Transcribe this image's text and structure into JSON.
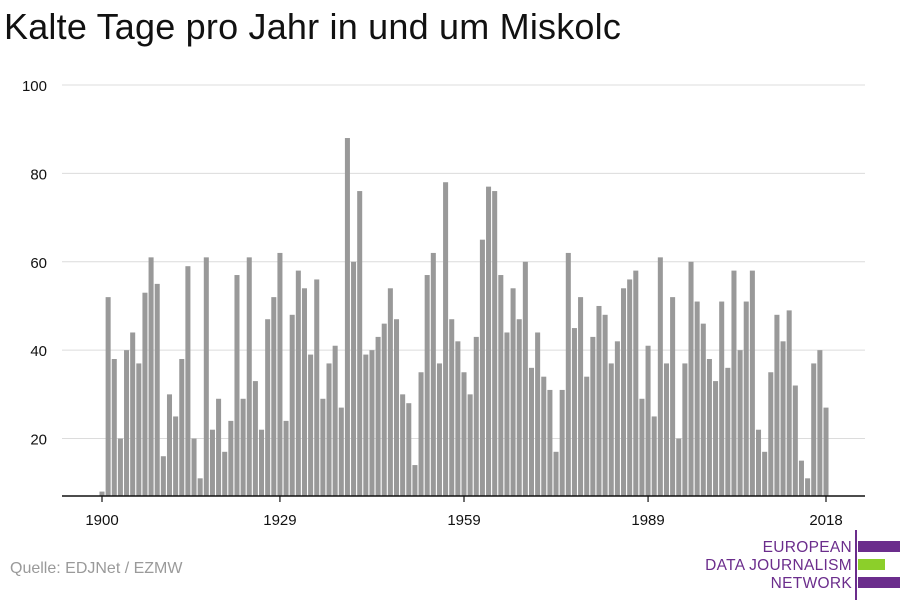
{
  "title": "Kalte Tage pro Jahr in und um Miskolc",
  "source": "Quelle: EDJNet / EZMW",
  "logo": {
    "line1": "EUROPEAN",
    "line2": "DATA JOURNALISM",
    "line3": "NETWORK"
  },
  "colors": {
    "bar": "#999999",
    "grid": "#dcdcdc",
    "axis": "#111111",
    "logo_purple": "#6b2d8c",
    "logo_green": "#8ccf2a"
  },
  "chart_data": {
    "type": "bar",
    "title": "Kalte Tage pro Jahr in und um Miskolc",
    "xlabel": "",
    "ylabel": "",
    "ylim": [
      7,
      100
    ],
    "yticks": [
      20,
      40,
      60,
      80,
      100
    ],
    "xticks": [
      1900,
      1929,
      1959,
      1989,
      2018
    ],
    "grid": true,
    "x": [
      1900,
      1901,
      1902,
      1903,
      1904,
      1905,
      1906,
      1907,
      1908,
      1909,
      1910,
      1911,
      1912,
      1913,
      1914,
      1915,
      1916,
      1917,
      1918,
      1919,
      1920,
      1921,
      1922,
      1923,
      1924,
      1925,
      1926,
      1927,
      1928,
      1929,
      1930,
      1931,
      1932,
      1933,
      1934,
      1935,
      1936,
      1937,
      1938,
      1939,
      1940,
      1941,
      1942,
      1943,
      1944,
      1945,
      1946,
      1947,
      1948,
      1949,
      1950,
      1951,
      1952,
      1953,
      1954,
      1955,
      1956,
      1957,
      1958,
      1959,
      1960,
      1961,
      1962,
      1963,
      1964,
      1965,
      1966,
      1967,
      1968,
      1969,
      1970,
      1971,
      1972,
      1973,
      1974,
      1975,
      1976,
      1977,
      1978,
      1979,
      1980,
      1981,
      1982,
      1983,
      1984,
      1985,
      1986,
      1987,
      1988,
      1989,
      1990,
      1991,
      1992,
      1993,
      1994,
      1995,
      1996,
      1997,
      1998,
      1999,
      2000,
      2001,
      2002,
      2003,
      2004,
      2005,
      2006,
      2007,
      2008,
      2009,
      2010,
      2011,
      2012,
      2013,
      2014,
      2015,
      2016,
      2017,
      2018
    ],
    "values": [
      8,
      52,
      38,
      20,
      40,
      44,
      37,
      53,
      61,
      55,
      16,
      30,
      25,
      38,
      59,
      20,
      11,
      61,
      22,
      29,
      17,
      24,
      57,
      29,
      61,
      33,
      22,
      47,
      52,
      62,
      24,
      48,
      58,
      54,
      39,
      56,
      29,
      37,
      41,
      27,
      88,
      60,
      76,
      39,
      40,
      43,
      46,
      54,
      47,
      30,
      28,
      14,
      35,
      57,
      62,
      37,
      78,
      47,
      42,
      35,
      30,
      43,
      65,
      77,
      76,
      57,
      44,
      54,
      47,
      60,
      36,
      44,
      34,
      31,
      17,
      31,
      62,
      45,
      52,
      34,
      43,
      50,
      48,
      37,
      42,
      54,
      56,
      58,
      29,
      41,
      25,
      61,
      37,
      52,
      20,
      37,
      60,
      51,
      46,
      38,
      33,
      51,
      36,
      58,
      40,
      51,
      58,
      22,
      17,
      35,
      48,
      42,
      49,
      32,
      15,
      11,
      37,
      40,
      27
    ]
  }
}
